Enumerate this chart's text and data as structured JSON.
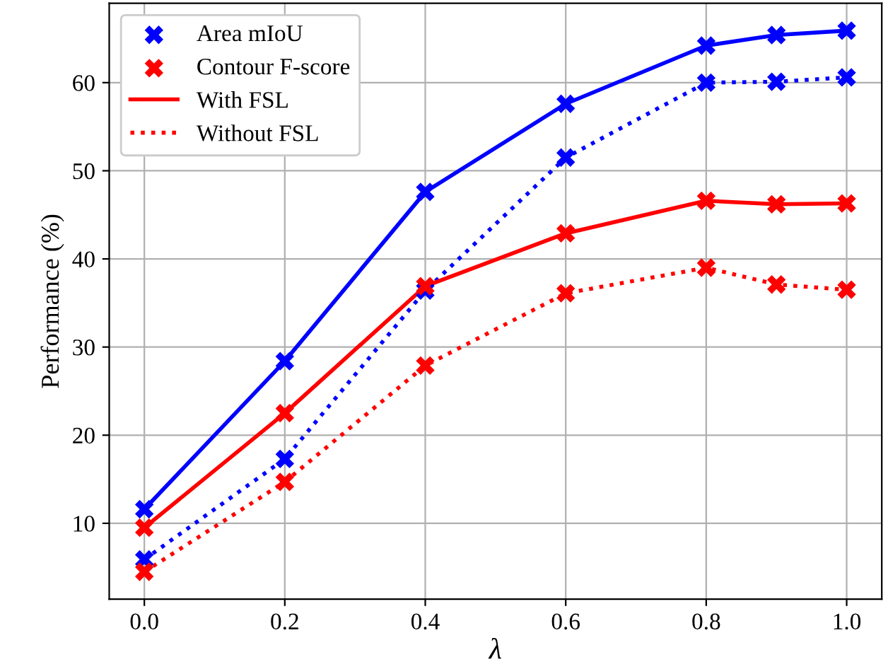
{
  "chart_data": {
    "type": "line",
    "xlabel": "λ",
    "ylabel": "Performance (%)",
    "x": [
      0.0,
      0.2,
      0.4,
      0.6,
      0.8,
      0.9,
      1.0
    ],
    "series": [
      {
        "marker": "none",
        "color": "#0000ff",
        "line_style": "solid",
        "values": [
          11.6,
          28.4,
          47.6,
          57.6,
          64.2,
          65.4,
          65.9
        ]
      },
      {
        "marker": "none",
        "color": "#0000ff",
        "line_style": "dotted",
        "values": [
          5.9,
          17.3,
          36.4,
          51.5,
          60.0,
          60.1,
          60.6
        ]
      },
      {
        "name": "With FSL",
        "marker": "none",
        "color": "#ff0000",
        "line_style": "solid",
        "values": [
          9.5,
          22.5,
          36.9,
          42.9,
          46.6,
          46.2,
          46.3
        ]
      },
      {
        "name": "Without FSL",
        "marker": "none",
        "color": "#ff0000",
        "line_style": "dotted",
        "values": [
          4.5,
          14.7,
          27.9,
          36.1,
          39.0,
          37.1,
          36.5
        ]
      },
      {
        "name": "Area mIoU",
        "type": "scatter",
        "marker": "cross",
        "color": "#0000ff",
        "x": [
          0.0,
          0.2,
          0.4,
          0.6,
          0.8,
          0.9,
          1.0,
          0.0,
          0.2,
          0.4,
          0.6,
          0.8,
          0.9,
          1.0
        ],
        "values": [
          11.6,
          28.4,
          47.6,
          57.6,
          64.2,
          65.4,
          65.9,
          5.9,
          17.3,
          36.4,
          51.5,
          60.0,
          60.1,
          60.6
        ]
      },
      {
        "name": "Contour F-score",
        "type": "scatter",
        "marker": "cross",
        "color": "#ff0000",
        "x": [
          0.0,
          0.2,
          0.4,
          0.6,
          0.8,
          0.9,
          1.0,
          0.0,
          0.2,
          0.4,
          0.6,
          0.8,
          0.9,
          1.0
        ],
        "values": [
          9.5,
          22.5,
          36.9,
          42.9,
          46.6,
          46.2,
          46.3,
          4.5,
          14.7,
          27.9,
          36.1,
          39.0,
          37.1,
          36.5
        ]
      }
    ],
    "grid": true,
    "legend": "top left",
    "xlim": [
      -0.05,
      1.05
    ],
    "ylim": [
      1.4,
      69.0
    ],
    "xticks": [
      {
        "value": 0.0,
        "label": "0.0"
      },
      0.2,
      0.4,
      0.6,
      0.8,
      {
        "value": 1.0,
        "label": "1.0"
      }
    ],
    "yticks": [
      10,
      20,
      30,
      40,
      50,
      60
    ]
  }
}
